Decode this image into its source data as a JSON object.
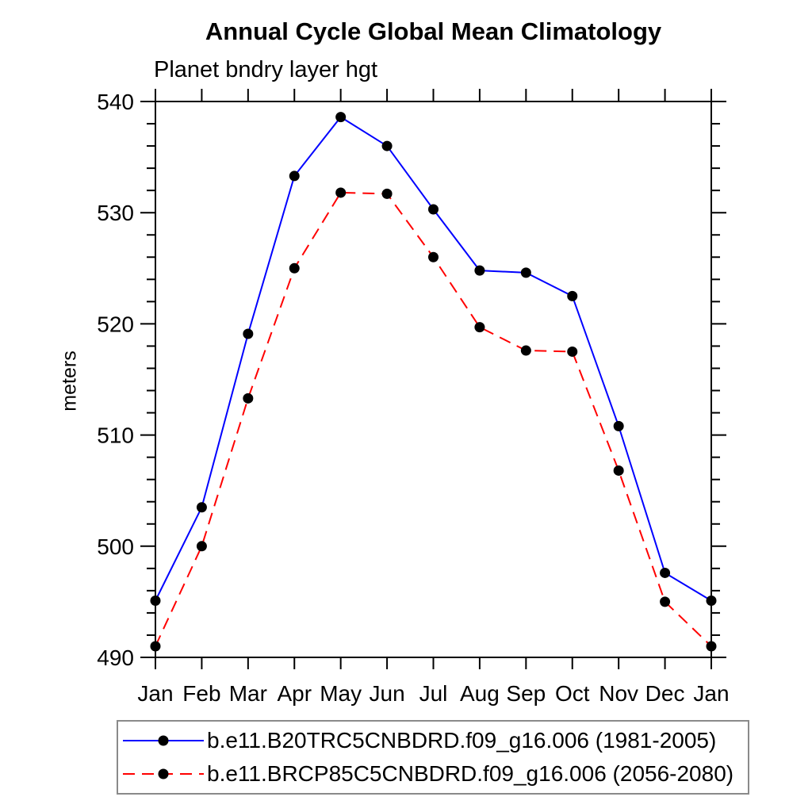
{
  "title": "Annual Cycle Global Mean Climatology",
  "subtitle": "Planet bndry layer hgt",
  "ylabel": "meters",
  "chart_data": {
    "type": "line",
    "x_categories": [
      "Jan",
      "Feb",
      "Mar",
      "Apr",
      "May",
      "Jun",
      "Jul",
      "Aug",
      "Sep",
      "Oct",
      "Nov",
      "Dec",
      "Jan"
    ],
    "xlabel": "",
    "ylabel": "meters",
    "ylim": [
      490,
      540
    ],
    "ytick_major": [
      490,
      500,
      510,
      520,
      530,
      540
    ],
    "ytick_minor_step": 2,
    "grid": false,
    "legend_position": "bottom",
    "frame_color": "#000000",
    "series": [
      {
        "name": "b.e11.B20TRC5CNBDRD.f09_g16.006 (1981-2005)",
        "color": "#0000ff",
        "style": "solid",
        "marker": "circle",
        "marker_color": "#000000",
        "values": [
          495.1,
          503.5,
          519.1,
          533.3,
          538.6,
          536.0,
          530.3,
          524.8,
          524.6,
          522.5,
          510.8,
          497.6,
          495.1
        ]
      },
      {
        "name": "b.e11.BRCP85C5CNBDRD.f09_g16.006 (2056-2080)",
        "color": "#ff0000",
        "style": "dashed",
        "marker": "circle",
        "marker_color": "#000000",
        "values": [
          491.0,
          500.0,
          513.3,
          525.0,
          531.8,
          531.7,
          526.0,
          519.7,
          517.6,
          517.5,
          506.8,
          495.0,
          491.0
        ]
      }
    ]
  }
}
